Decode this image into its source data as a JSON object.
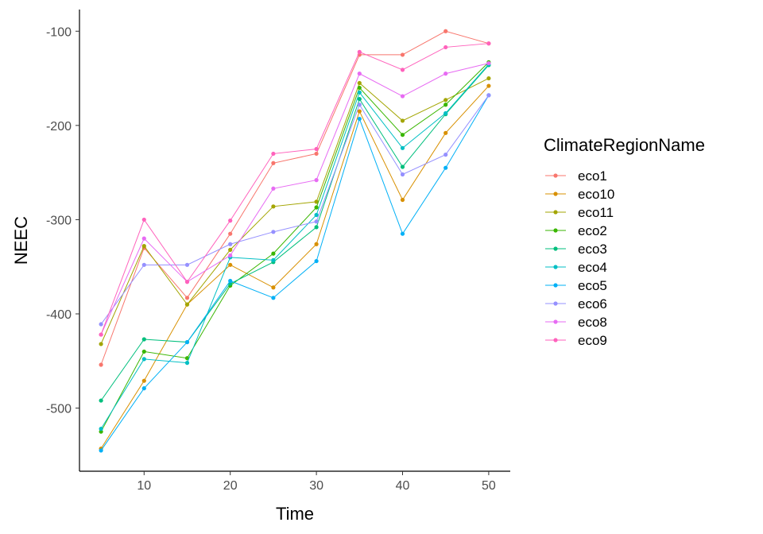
{
  "chart_data": {
    "type": "line",
    "xlabel": "Time",
    "ylabel": "NEEC",
    "xlim": [
      2.5,
      52.5
    ],
    "ylim": [
      -567,
      -77
    ],
    "xticks": [
      10,
      20,
      30,
      40,
      50
    ],
    "yticks": [
      -100,
      -200,
      -300,
      -400,
      -500
    ],
    "grid": false,
    "legend_title": "ClimateRegionName",
    "legend_position": "right",
    "x": [
      5,
      10,
      15,
      20,
      25,
      30,
      35,
      40,
      45,
      50
    ],
    "series": [
      {
        "name": "eco1",
        "color": "#F8766D",
        "values": [
          -454,
          -330,
          -383,
          -315,
          -240,
          -230,
          -125,
          -125,
          -100,
          -113
        ]
      },
      {
        "name": "eco10",
        "color": "#D89000",
        "values": [
          -543,
          -471,
          -390,
          -348,
          -372,
          -326,
          -185,
          -279,
          -208,
          -158
        ]
      },
      {
        "name": "eco11",
        "color": "#A3A500",
        "values": [
          -432,
          -328,
          -390,
          -332,
          -286,
          -281,
          -155,
          -195,
          -173,
          -150
        ]
      },
      {
        "name": "eco2",
        "color": "#39B600",
        "values": [
          -525,
          -440,
          -447,
          -370,
          -336,
          -287,
          -160,
          -210,
          -178,
          -133
        ]
      },
      {
        "name": "eco3",
        "color": "#00BF7D",
        "values": [
          -492,
          -427,
          -430,
          -368,
          -345,
          -308,
          -172,
          -244,
          -188,
          -136
        ]
      },
      {
        "name": "eco4",
        "color": "#00BFC4",
        "values": [
          -522,
          -448,
          -452,
          -340,
          -343,
          -295,
          -165,
          -224,
          -187,
          -135
        ]
      },
      {
        "name": "eco5",
        "color": "#00B0F6",
        "values": [
          -545,
          -479,
          -430,
          -365,
          -383,
          -344,
          -193,
          -315,
          -245,
          -168
        ]
      },
      {
        "name": "eco6",
        "color": "#9590FF",
        "values": [
          -411,
          -348,
          -348,
          -326,
          -313,
          -302,
          -178,
          -252,
          -231,
          -168
        ]
      },
      {
        "name": "eco8",
        "color": "#E76BF3",
        "values": [
          -422,
          -320,
          -366,
          -338,
          -267,
          -258,
          -145,
          -169,
          -145,
          -134
        ]
      },
      {
        "name": "eco9",
        "color": "#FF62BC",
        "values": [
          -422,
          -300,
          -366,
          -301,
          -230,
          -225,
          -122,
          -141,
          -117,
          -113
        ]
      }
    ]
  }
}
